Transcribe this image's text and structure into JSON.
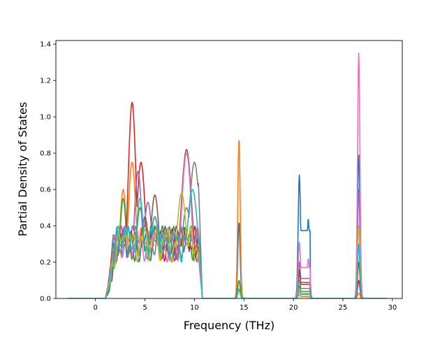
{
  "chart_data": {
    "type": "line",
    "title": "",
    "xlabel": "Frequency (THz)",
    "ylabel": "Partial Density of States",
    "xlim": [
      -4.0,
      31.0
    ],
    "ylim": [
      0.0,
      1.42
    ],
    "xticks": [
      0,
      5,
      10,
      15,
      20,
      25,
      30
    ],
    "yticks": [
      0.0,
      0.2,
      0.4,
      0.6,
      0.8,
      1.0,
      1.2,
      1.4
    ],
    "xtick_labels": [
      "0",
      "5",
      "10",
      "15",
      "20",
      "25",
      "30"
    ],
    "ytick_labels": [
      "0.0",
      "0.2",
      "0.4",
      "0.6",
      "0.8",
      "1.0",
      "1.2",
      "1.4"
    ],
    "grid": false,
    "legend": "none",
    "x_range_of_data": [
      -2.8,
      29.5
    ],
    "series": [
      {
        "color": "#1f77b4",
        "points": [
          [
            1.8,
            0.35
          ],
          [
            3.5,
            0.3
          ],
          [
            6.0,
            0.32
          ],
          [
            9.2,
            0.3
          ],
          [
            14.5,
            0.42
          ],
          [
            20.6,
            0.68
          ],
          [
            21.5,
            0.44
          ],
          [
            26.6,
            0.79
          ]
        ]
      },
      {
        "color": "#ff7f0e",
        "points": [
          [
            2.8,
            0.6
          ],
          [
            3.7,
            0.75
          ],
          [
            6.0,
            0.45
          ],
          [
            9.0,
            0.35
          ],
          [
            14.5,
            0.88
          ],
          [
            20.6,
            0.02
          ],
          [
            26.6,
            0.03
          ]
        ]
      },
      {
        "color": "#2ca02c",
        "points": [
          [
            2.8,
            0.55
          ],
          [
            4.5,
            0.5
          ],
          [
            6.0,
            0.4
          ],
          [
            9.2,
            0.3
          ],
          [
            14.5,
            0.1
          ],
          [
            20.6,
            0.07
          ],
          [
            26.6,
            0.3
          ]
        ]
      },
      {
        "color": "#d62728",
        "points": [
          [
            2.6,
            0.35
          ],
          [
            3.7,
            1.08
          ],
          [
            4.6,
            0.75
          ],
          [
            6.0,
            0.45
          ],
          [
            9.2,
            0.3
          ],
          [
            14.5,
            0.05
          ],
          [
            20.6,
            0.14
          ],
          [
            26.6,
            0.1
          ]
        ]
      },
      {
        "color": "#9467bd",
        "points": [
          [
            3.0,
            0.4
          ],
          [
            4.3,
            0.7
          ],
          [
            5.3,
            0.53
          ],
          [
            7.0,
            0.35
          ],
          [
            9.2,
            0.3
          ],
          [
            14.5,
            0.05
          ],
          [
            20.6,
            0.2
          ],
          [
            26.6,
            0.6
          ]
        ]
      },
      {
        "color": "#8c564b",
        "points": [
          [
            3.0,
            0.3
          ],
          [
            5.0,
            0.45
          ],
          [
            6.0,
            0.57
          ],
          [
            8.0,
            0.3
          ],
          [
            9.2,
            0.82
          ],
          [
            10.0,
            0.2
          ],
          [
            14.5,
            0.05
          ],
          [
            20.6,
            0.16
          ],
          [
            26.6,
            0.2
          ]
        ]
      },
      {
        "color": "#e377c2",
        "points": [
          [
            2.4,
            0.25
          ],
          [
            4.0,
            0.3
          ],
          [
            6.0,
            0.35
          ],
          [
            9.2,
            0.8
          ],
          [
            14.5,
            0.05
          ],
          [
            20.6,
            0.31
          ],
          [
            21.5,
            0.22
          ],
          [
            26.6,
            1.35
          ]
        ]
      },
      {
        "color": "#7f7f7f",
        "points": [
          [
            3.0,
            0.3
          ],
          [
            5.0,
            0.4
          ],
          [
            7.0,
            0.35
          ],
          [
            9.2,
            0.5
          ],
          [
            10.0,
            0.75
          ],
          [
            10.6,
            0.67
          ],
          [
            14.5,
            0.05
          ],
          [
            20.6,
            0.1
          ],
          [
            26.6,
            0.4
          ]
        ]
      },
      {
        "color": "#bcbd22",
        "points": [
          [
            3.0,
            0.35
          ],
          [
            5.0,
            0.38
          ],
          [
            7.0,
            0.35
          ],
          [
            8.7,
            0.58
          ],
          [
            9.2,
            0.3
          ],
          [
            14.5,
            0.05
          ],
          [
            20.6,
            0.05
          ],
          [
            26.6,
            0.4
          ]
        ]
      },
      {
        "color": "#17becf",
        "points": [
          [
            3.0,
            0.38
          ],
          [
            4.5,
            0.55
          ],
          [
            6.0,
            0.45
          ],
          [
            8.0,
            0.35
          ],
          [
            9.8,
            0.6
          ],
          [
            14.5,
            0.05
          ],
          [
            20.6,
            0.04
          ],
          [
            26.6,
            0.3
          ]
        ]
      }
    ]
  }
}
